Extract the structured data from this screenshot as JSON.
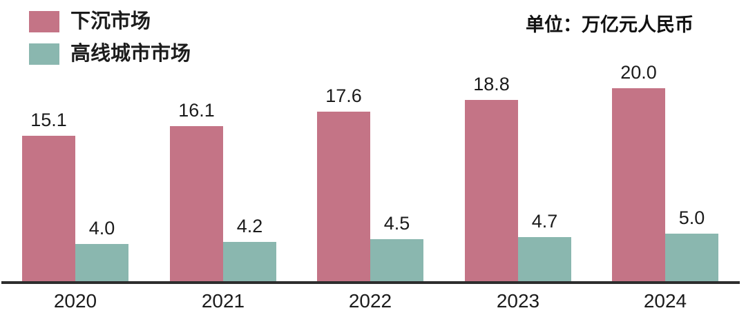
{
  "unit_label": "单位：万亿元人民币",
  "colors": {
    "series_lower_tier": "#c47486",
    "series_higher_tier": "#8ab7af",
    "axis": "#2d2d2d",
    "text": "#1b1b1b"
  },
  "legend": {
    "items": [
      {
        "label": "下沉市场",
        "color": "#c47486"
      },
      {
        "label": "高线城市市场",
        "color": "#8ab7af"
      }
    ]
  },
  "chart_data": {
    "type": "bar",
    "title": "",
    "unit": "万亿元人民币",
    "categories": [
      "2020",
      "2021",
      "2022",
      "2023",
      "2024"
    ],
    "series": [
      {
        "name": "下沉市场",
        "color": "#c47486",
        "values": [
          15.1,
          16.1,
          17.6,
          18.8,
          20.0
        ]
      },
      {
        "name": "高线城市市场",
        "color": "#8ab7af",
        "values": [
          4.0,
          4.2,
          4.5,
          4.7,
          5.0
        ]
      }
    ],
    "value_label_decimals": 1,
    "ylim": [
      0,
      21
    ],
    "grid": false,
    "y_axis_visible": false,
    "legend_position": "top-left"
  }
}
